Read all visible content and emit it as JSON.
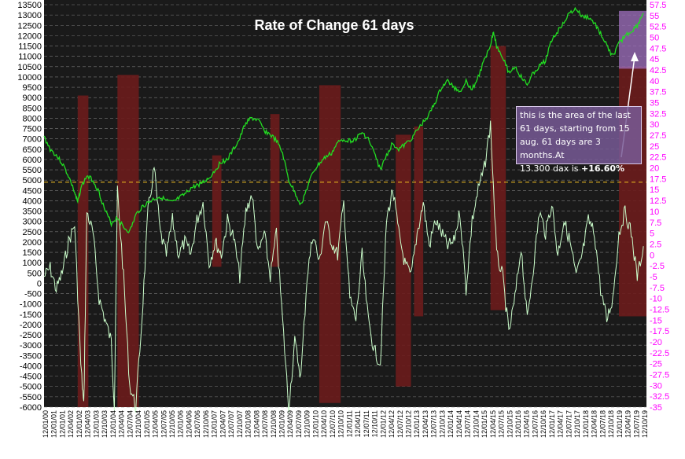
{
  "chart_data": {
    "type": "line",
    "title": "Rate of Change 61 days",
    "left_axis": {
      "min": -6000,
      "max": 13500,
      "step": 500
    },
    "right_axis": {
      "min": -35,
      "max": 57.5,
      "step": 2.5,
      "tick_labels": [
        "-35",
        "-32.5",
        "-30",
        "-27.5",
        "-25",
        "-22.5",
        "-20",
        "-17.5",
        "-15",
        "-12.5",
        "-10",
        "-7.5",
        "-5",
        "-2.5",
        "0",
        "2.5",
        "5",
        "7.5",
        "10",
        "12.5",
        "15",
        "17.5",
        "20",
        "22.5",
        "25",
        "27.5",
        "30",
        "32.5",
        "35",
        "37.5",
        "40",
        "42.5",
        "45",
        "47.5",
        "50",
        "52.5",
        "55",
        "57.5"
      ]
    },
    "x_tick_labels": [
      "12/01/00",
      "12/01/01",
      "12/01/01",
      "12/04/02",
      "12/01/02",
      "12/04/03",
      "12/01/03",
      "12/10/03",
      "12/01/04",
      "12/04/04",
      "12/07/04",
      "12/10/04",
      "12/01/05",
      "12/04/05",
      "12/07/05",
      "12/10/05",
      "12/01/06",
      "12/04/06",
      "12/07/06",
      "12/10/06",
      "12/01/07",
      "12/04/07",
      "12/07/07",
      "12/10/07",
      "12/01/08",
      "12/04/08",
      "12/07/08",
      "12/10/08",
      "12/01/09",
      "12/04/09",
      "12/07/09",
      "12/10/09",
      "12/01/10",
      "12/04/10",
      "12/07/10",
      "12/10/10",
      "12/01/11",
      "12/04/11",
      "12/07/11",
      "12/10/11",
      "12/01/12",
      "12/04/12",
      "12/07/12",
      "12/10/12",
      "12/01/13",
      "12/04/13",
      "12/07/13",
      "12/10/13",
      "12/01/14",
      "12/04/14",
      "12/07/14",
      "12/10/14",
      "12/01/15",
      "12/04/15",
      "12/07/15",
      "12/10/15",
      "12/01/16",
      "12/04/16",
      "12/07/16",
      "12/10/16",
      "12/01/17",
      "12/04/17",
      "12/07/17",
      "12/10/17",
      "12/01/18",
      "12/04/18",
      "12/07/18",
      "12/10/18",
      "12/01/19",
      "12/04/19",
      "12/07/19",
      "12/10/19"
    ],
    "reference_line": {
      "value": 4900,
      "color": "#e0b020"
    },
    "series": [
      {
        "axis": "left",
        "color": "#22dd22",
        "points": [
          [
            0,
            7100
          ],
          [
            2,
            6500
          ],
          [
            4,
            6200
          ],
          [
            6,
            5800
          ],
          [
            8,
            5200
          ],
          [
            10,
            4400
          ],
          [
            11,
            3900
          ],
          [
            12,
            4600
          ],
          [
            14,
            5200
          ],
          [
            16,
            5000
          ],
          [
            18,
            4400
          ],
          [
            20,
            3500
          ],
          [
            22,
            2900
          ],
          [
            24,
            3200
          ],
          [
            26,
            2700
          ],
          [
            28,
            2500
          ],
          [
            30,
            3300
          ],
          [
            32,
            3700
          ],
          [
            34,
            3900
          ],
          [
            36,
            4100
          ],
          [
            38,
            4200
          ],
          [
            40,
            4000
          ],
          [
            42,
            3900
          ],
          [
            44,
            4100
          ],
          [
            46,
            4300
          ],
          [
            48,
            4600
          ],
          [
            50,
            4750
          ],
          [
            52,
            4900
          ],
          [
            54,
            5100
          ],
          [
            56,
            5500
          ],
          [
            58,
            5900
          ],
          [
            60,
            6000
          ],
          [
            62,
            6500
          ],
          [
            64,
            7000
          ],
          [
            66,
            7800
          ],
          [
            68,
            8000
          ],
          [
            70,
            7900
          ],
          [
            72,
            7400
          ],
          [
            74,
            7200
          ],
          [
            76,
            6900
          ],
          [
            78,
            6300
          ],
          [
            80,
            5000
          ],
          [
            82,
            4400
          ],
          [
            84,
            3800
          ],
          [
            86,
            4600
          ],
          [
            88,
            5400
          ],
          [
            90,
            5800
          ],
          [
            92,
            6100
          ],
          [
            94,
            6300
          ],
          [
            96,
            6800
          ],
          [
            98,
            7000
          ],
          [
            100,
            6900
          ],
          [
            102,
            7000
          ],
          [
            104,
            7300
          ],
          [
            106,
            7000
          ],
          [
            108,
            6300
          ],
          [
            110,
            5500
          ],
          [
            112,
            6200
          ],
          [
            114,
            6800
          ],
          [
            116,
            6500
          ],
          [
            118,
            6700
          ],
          [
            120,
            7000
          ],
          [
            122,
            7400
          ],
          [
            124,
            7800
          ],
          [
            126,
            8200
          ],
          [
            128,
            8800
          ],
          [
            130,
            9500
          ],
          [
            132,
            9800
          ],
          [
            134,
            9500
          ],
          [
            136,
            9300
          ],
          [
            138,
            9800
          ],
          [
            140,
            9400
          ],
          [
            142,
            10000
          ],
          [
            144,
            10800
          ],
          [
            146,
            11600
          ],
          [
            147,
            12200
          ],
          [
            148,
            11500
          ],
          [
            150,
            11000
          ],
          [
            152,
            10200
          ],
          [
            154,
            10500
          ],
          [
            156,
            10000
          ],
          [
            158,
            9600
          ],
          [
            160,
            10200
          ],
          [
            162,
            10500
          ],
          [
            164,
            10800
          ],
          [
            166,
            11800
          ],
          [
            168,
            12200
          ],
          [
            170,
            12700
          ],
          [
            172,
            13100
          ],
          [
            174,
            13300
          ],
          [
            176,
            12900
          ],
          [
            178,
            12900
          ],
          [
            180,
            12600
          ],
          [
            182,
            12100
          ],
          [
            184,
            11500
          ],
          [
            186,
            11000
          ],
          [
            188,
            11600
          ],
          [
            190,
            12000
          ],
          [
            192,
            12200
          ],
          [
            194,
            12500
          ],
          [
            196,
            13100
          ]
        ]
      },
      {
        "axis": "right",
        "color": "#ccffcc",
        "points": [
          [
            0,
            -5
          ],
          [
            2,
            -3
          ],
          [
            4,
            -8
          ],
          [
            6,
            -4
          ],
          [
            8,
            3
          ],
          [
            10,
            7
          ],
          [
            12,
            -25
          ],
          [
            13,
            -35
          ],
          [
            14,
            10
          ],
          [
            16,
            5
          ],
          [
            18,
            -10
          ],
          [
            20,
            -15
          ],
          [
            22,
            -20
          ],
          [
            23,
            -35
          ],
          [
            24,
            15
          ],
          [
            26,
            -5
          ],
          [
            28,
            -30
          ],
          [
            30,
            -35
          ],
          [
            32,
            -15
          ],
          [
            34,
            10
          ],
          [
            36,
            20
          ],
          [
            38,
            5
          ],
          [
            40,
            0
          ],
          [
            42,
            8
          ],
          [
            44,
            0
          ],
          [
            46,
            3
          ],
          [
            48,
            0
          ],
          [
            50,
            8
          ],
          [
            52,
            12
          ],
          [
            54,
            -2
          ],
          [
            56,
            3
          ],
          [
            58,
            0
          ],
          [
            60,
            8
          ],
          [
            62,
            4
          ],
          [
            64,
            -5
          ],
          [
            66,
            10
          ],
          [
            68,
            14
          ],
          [
            70,
            0
          ],
          [
            72,
            5
          ],
          [
            74,
            -5
          ],
          [
            76,
            5
          ],
          [
            78,
            -15
          ],
          [
            80,
            -35
          ],
          [
            82,
            -20
          ],
          [
            84,
            -28
          ],
          [
            86,
            -5
          ],
          [
            88,
            5
          ],
          [
            90,
            -2
          ],
          [
            92,
            8
          ],
          [
            94,
            3
          ],
          [
            96,
            0
          ],
          [
            98,
            12
          ],
          [
            100,
            -10
          ],
          [
            102,
            -15
          ],
          [
            104,
            0
          ],
          [
            106,
            -15
          ],
          [
            108,
            -22
          ],
          [
            110,
            -25
          ],
          [
            112,
            8
          ],
          [
            114,
            15
          ],
          [
            116,
            5
          ],
          [
            118,
            -2
          ],
          [
            120,
            -5
          ],
          [
            122,
            5
          ],
          [
            124,
            12
          ],
          [
            126,
            2
          ],
          [
            128,
            8
          ],
          [
            130,
            5
          ],
          [
            132,
            2
          ],
          [
            134,
            3
          ],
          [
            136,
            10
          ],
          [
            138,
            -8
          ],
          [
            140,
            8
          ],
          [
            142,
            15
          ],
          [
            144,
            20
          ],
          [
            146,
            30
          ],
          [
            148,
            0
          ],
          [
            150,
            -5
          ],
          [
            152,
            -18
          ],
          [
            154,
            -10
          ],
          [
            156,
            2
          ],
          [
            158,
            -15
          ],
          [
            160,
            -3
          ],
          [
            162,
            10
          ],
          [
            164,
            5
          ],
          [
            166,
            12
          ],
          [
            168,
            0
          ],
          [
            170,
            8
          ],
          [
            172,
            3
          ],
          [
            174,
            -5
          ],
          [
            176,
            0
          ],
          [
            178,
            8
          ],
          [
            180,
            5
          ],
          [
            182,
            -8
          ],
          [
            184,
            -15
          ],
          [
            186,
            -10
          ],
          [
            188,
            5
          ],
          [
            190,
            10
          ],
          [
            192,
            5
          ],
          [
            194,
            -5
          ],
          [
            196,
            2
          ]
        ]
      }
    ],
    "highlight_bars": [
      {
        "x_start": 11,
        "x_end": 14.5,
        "top": 9100,
        "bottom": -6000
      },
      {
        "x_start": 24,
        "x_end": 31,
        "top": 10100,
        "bottom": -6000
      },
      {
        "x_start": 55,
        "x_end": 58,
        "top": 6200,
        "bottom": 800
      },
      {
        "x_start": 74,
        "x_end": 77,
        "top": 8200,
        "bottom": 800
      },
      {
        "x_start": 90,
        "x_end": 97,
        "top": 9600,
        "bottom": -5800
      },
      {
        "x_start": 115,
        "x_end": 120,
        "top": 7200,
        "bottom": -5000
      },
      {
        "x_start": 121,
        "x_end": 124,
        "top": 7600,
        "bottom": -1600
      },
      {
        "x_start": 146,
        "x_end": 151,
        "top": 11500,
        "bottom": -1300
      },
      {
        "x_start": 188,
        "x_end": 197,
        "top": 10500,
        "bottom": -1600
      }
    ],
    "highlight_area": {
      "x_start": 188,
      "x_end": 197,
      "top": 13200,
      "bottom": 10400
    },
    "annotation": {
      "text_lines": [
        "this is the area of the last",
        "61 days, starting from 15",
        "aug. 61 days are 3 months.At",
        "13.300 dax is "
      ],
      "bold_value": "+16.60%"
    }
  },
  "colors": {
    "background": "#1a1a1a",
    "grid": "#7a7a7a",
    "bar": "#6b1c1c",
    "highlight_area": "#a070c0",
    "arrow": "#ffffff"
  }
}
